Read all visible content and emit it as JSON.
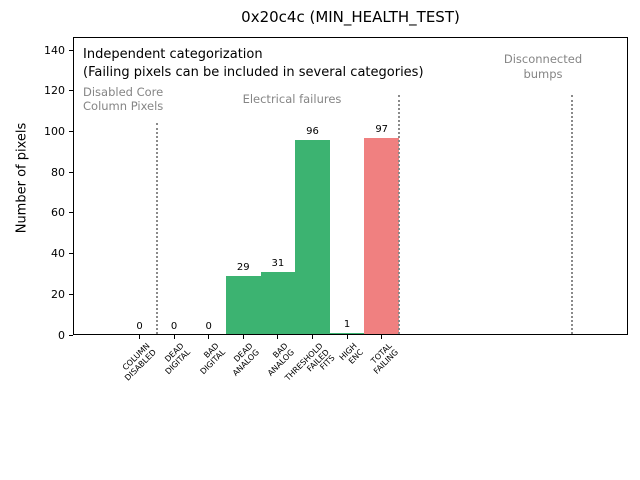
{
  "title": "0x20c4c (MIN_HEALTH_TEST)",
  "chart_data": {
    "type": "bar",
    "categories": [
      "COLUMN\nDISABLED",
      "DEAD\nDIGITAL",
      "BAD\nDIGITAL",
      "DEAD\nANALOG",
      "BAD\nANALOG",
      "THRESHOLD\nFAILED\nFITS",
      "HIGH\nENC",
      "TOTAL\nFAILING"
    ],
    "values": [
      0,
      0,
      0,
      29,
      31,
      96,
      1,
      97
    ],
    "bar_colors": [
      "#3cb371",
      "#3cb371",
      "#3cb371",
      "#3cb371",
      "#3cb371",
      "#3cb371",
      "#3cb371",
      "#f08080"
    ],
    "value_labels": [
      "0",
      "0",
      "0",
      "29",
      "31",
      "96",
      "1",
      "97"
    ],
    "ylabel": "Number of pixels",
    "yticks": [
      0,
      20,
      40,
      60,
      80,
      100,
      120,
      140
    ],
    "ylim": [
      0,
      146.5
    ],
    "grid": false,
    "legend": null,
    "colors": {
      "pass_green": "#3cb371",
      "fail_red": "#f08080",
      "muted_gray": "#858585",
      "separator_gray": "#8a8a8a"
    },
    "annotations": [
      {
        "id": "independent-categorization",
        "text": "Independent categorization",
        "color": "#000000"
      },
      {
        "id": "failing-note",
        "text": "(Failing pixels can be included in several categories)",
        "color": "#000000"
      },
      {
        "id": "disabled-core",
        "text": "Disabled Core\nColumn Pixels",
        "color": "#858585"
      },
      {
        "id": "electrical-failures",
        "text": "Electrical failures",
        "color": "#858585"
      },
      {
        "id": "disconnected-bumps",
        "text": "Disconnected\nbumps",
        "color": "#858585"
      }
    ],
    "separators": [
      {
        "x": 0.5,
        "top_value": 104
      },
      {
        "x": 7.5,
        "top_value": 118
      },
      {
        "x": 12.5,
        "top_value": 118
      }
    ]
  }
}
